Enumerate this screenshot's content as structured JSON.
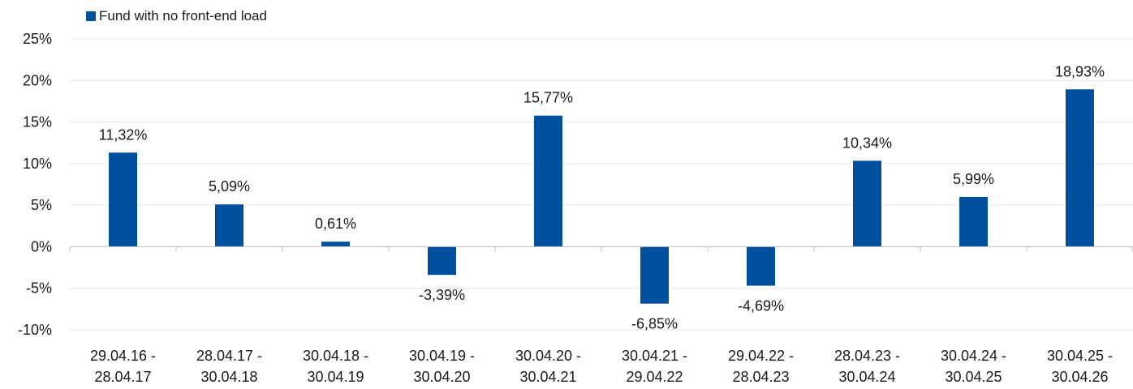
{
  "chart_data": {
    "type": "bar",
    "legend": {
      "position": "top-left",
      "entries": [
        "Fund with no front-end load"
      ]
    },
    "series": [
      {
        "name": "Fund with no front-end load",
        "color": "#0050A0",
        "values": [
          11.32,
          5.09,
          0.61,
          -3.39,
          15.77,
          -6.85,
          -4.69,
          10.34,
          5.99,
          18.93
        ]
      }
    ],
    "categories": [
      [
        "29.04.16 -",
        "28.04.17"
      ],
      [
        "28.04.17 -",
        "30.04.18"
      ],
      [
        "30.04.18 -",
        "30.04.19"
      ],
      [
        "30.04.19 -",
        "30.04.20"
      ],
      [
        "30.04.20 -",
        "30.04.21"
      ],
      [
        "30.04.21 -",
        "29.04.22"
      ],
      [
        "29.04.22 -",
        "28.04.23"
      ],
      [
        "28.04.23 -",
        "30.04.24"
      ],
      [
        "30.04.24 -",
        "30.04.25"
      ],
      [
        "30.04.25 -",
        "30.04.26"
      ]
    ],
    "data_labels": [
      "11,32%",
      "5,09%",
      "0,61%",
      "-3,39%",
      "15,77%",
      "-6,85%",
      "-4,69%",
      "10,34%",
      "5,99%",
      "18,93%"
    ],
    "ylim": [
      -10,
      25
    ],
    "yticks": [
      25,
      20,
      15,
      10,
      5,
      0,
      -5,
      -10
    ],
    "ytick_labels": [
      "25%",
      "20%",
      "15%",
      "10%",
      "5%",
      "0%",
      "-5%",
      "-10%"
    ],
    "grid": true,
    "colors": {
      "bar": "#0050A0",
      "grid": "#e6e6e6",
      "axis": "#bfbfbf",
      "text": "#1a1a1a"
    }
  }
}
